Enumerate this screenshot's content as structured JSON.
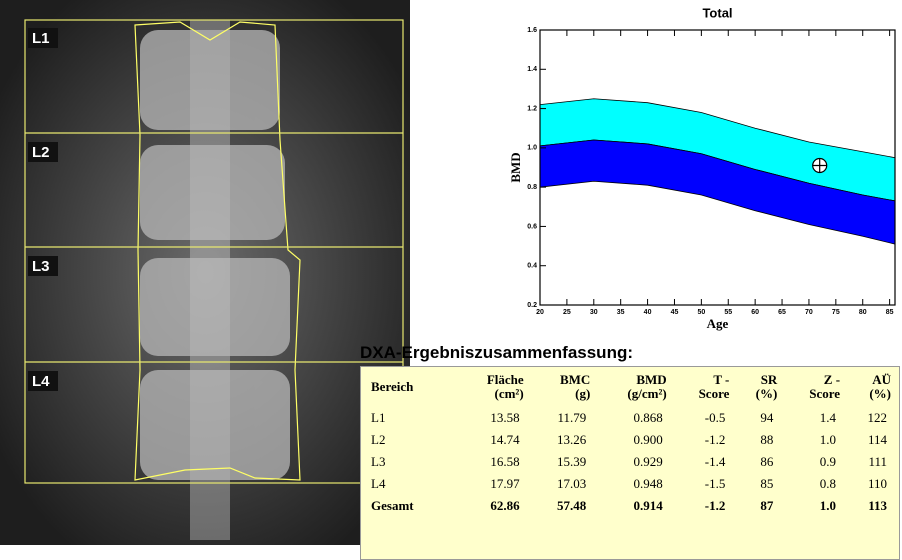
{
  "image": {
    "labels": [
      "L1",
      "L2",
      "L3",
      "L4"
    ]
  },
  "chart_data": {
    "type": "band",
    "title": "Total",
    "x_label": "Age",
    "y_label": "BMD",
    "x": [
      20,
      30,
      40,
      50,
      60,
      70,
      80,
      86
    ],
    "series": [
      {
        "color": "#00ffff",
        "values": [
          1.22,
          1.25,
          1.23,
          1.18,
          1.1,
          1.03,
          0.98,
          0.95
        ]
      },
      {
        "color": "#0000ff",
        "values": [
          1.01,
          1.04,
          1.02,
          0.97,
          0.89,
          0.82,
          0.76,
          0.73
        ]
      },
      {
        "values": [
          0.8,
          0.83,
          0.81,
          0.76,
          0.68,
          0.61,
          0.55,
          0.51
        ]
      }
    ],
    "point": {
      "x": 72,
      "y": 0.91
    },
    "xlim": [
      20,
      86
    ],
    "ylim": [
      0.2,
      1.6
    ],
    "xticks": [
      20,
      25,
      30,
      35,
      40,
      45,
      50,
      55,
      60,
      65,
      70,
      75,
      80,
      85
    ],
    "yticks": [
      0.2,
      0.4,
      0.6,
      0.8,
      {
        "value": 1,
        "label": "1.0"
      },
      1.2,
      1.4,
      1.6
    ]
  },
  "table": {
    "title": "DXA-Ergebniszusammenfassung:",
    "header": [
      [
        "Bereich"
      ],
      [
        "Fläche",
        "(cm²)"
      ],
      [
        "BMC",
        "(g)"
      ],
      [
        "BMD",
        "(g/cm²)"
      ],
      [
        "T -",
        "Score"
      ],
      [
        "SR",
        "(%)"
      ],
      [
        "Z -",
        "Score"
      ],
      [
        "AÜ",
        "(%)"
      ]
    ],
    "rows": [
      [
        "L1",
        "13.58",
        "11.79",
        "0.868",
        "-0.5",
        "94",
        "1.4",
        "122"
      ],
      [
        "L2",
        "14.74",
        "13.26",
        "0.900",
        "-1.2",
        "88",
        "1.0",
        "114"
      ],
      [
        "L3",
        "16.58",
        "15.39",
        "0.929",
        "-1.4",
        "86",
        "0.9",
        "111"
      ],
      [
        "L4",
        "17.97",
        "17.03",
        "0.948",
        "-1.5",
        "85",
        "0.8",
        "110"
      ],
      [
        "Gesamt",
        "62.86",
        "57.48",
        "0.914",
        "-1.2",
        "87",
        "1.0",
        "113"
      ]
    ]
  }
}
